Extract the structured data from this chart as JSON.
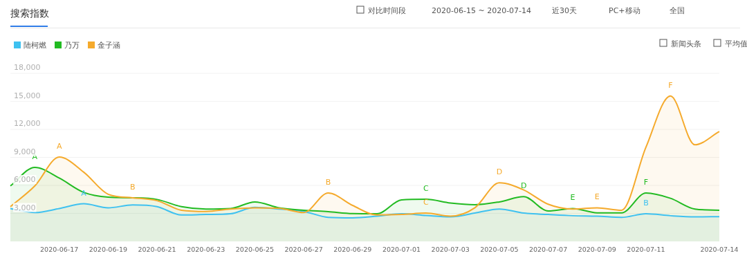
{
  "chart_data": {
    "type": "area",
    "title": "搜索指数",
    "annotations": [
      "对比时间段",
      "2020-06-15 ~ 2020-07-14",
      "近30天",
      "PC+移动",
      "全国",
      "新闻头条",
      "平均值",
      {
        "text": "A",
        "x": "2020-06-16",
        "y": 7930
      },
      {
        "text": "A",
        "x": "2020-06-17",
        "y": 9030
      },
      {
        "text": "A",
        "x": "2020-06-18",
        "y": 4030
      },
      {
        "text": "B",
        "x": "2020-06-20",
        "y": 4670
      },
      {
        "text": "B",
        "x": "2020-06-28",
        "y": 5180
      },
      {
        "text": "C",
        "x": "2020-07-02",
        "y": 4510
      },
      {
        "text": "C",
        "x": "2020-07-02",
        "y": 3030
      },
      {
        "text": "D",
        "x": "2020-07-05",
        "y": 6270
      },
      {
        "text": "D",
        "x": "2020-07-06",
        "y": 4790
      },
      {
        "text": "E",
        "x": "2020-07-08",
        "y": 3520
      },
      {
        "text": "E",
        "x": "2020-07-09",
        "y": 3600
      },
      {
        "text": "F",
        "x": "2020-07-11",
        "y": 5180
      },
      {
        "text": "B",
        "x": "2020-07-11",
        "y": 2960
      },
      {
        "text": "F",
        "x": "2020-07-12",
        "y": 15580
      }
    ],
    "x": [
      "2020-06-15",
      "2020-06-16",
      "2020-06-17",
      "2020-06-18",
      "2020-06-19",
      "2020-06-20",
      "2020-06-21",
      "2020-06-22",
      "2020-06-23",
      "2020-06-24",
      "2020-06-25",
      "2020-06-26",
      "2020-06-27",
      "2020-06-28",
      "2020-06-29",
      "2020-06-30",
      "2020-07-01",
      "2020-07-02",
      "2020-07-03",
      "2020-07-04",
      "2020-07-05",
      "2020-07-06",
      "2020-07-07",
      "2020-07-08",
      "2020-07-09",
      "2020-07-10",
      "2020-07-11",
      "2020-07-12",
      "2020-07-13",
      "2020-07-14"
    ],
    "series": [
      {
        "name": "陆柯燃",
        "color": "#3ec1f0",
        "values": [
          3520,
          3090,
          3520,
          4030,
          3600,
          3900,
          3720,
          2830,
          2880,
          2960,
          3650,
          3470,
          3210,
          2580,
          2520,
          2700,
          2960,
          2780,
          2630,
          3030,
          3470,
          3030,
          2880,
          2750,
          2700,
          2580,
          2960,
          2750,
          2630,
          2650
        ]
      },
      {
        "name": "乃万",
        "color": "#22bb22",
        "values": [
          5940,
          7930,
          6780,
          5250,
          4740,
          4670,
          4490,
          3720,
          3470,
          3520,
          4230,
          3600,
          3340,
          3190,
          2980,
          2960,
          4440,
          4510,
          4110,
          3930,
          4230,
          4790,
          3260,
          3520,
          3060,
          3060,
          5180,
          4620,
          3470,
          3340
        ]
      },
      {
        "name": "金子涵",
        "color": "#f5aa2c",
        "values": [
          3720,
          5940,
          9030,
          7420,
          5050,
          4670,
          4360,
          3340,
          3210,
          3470,
          3600,
          3540,
          3090,
          5180,
          3850,
          2830,
          2880,
          3030,
          2700,
          3600,
          6270,
          5510,
          3980,
          3470,
          3600,
          3340,
          10100,
          15580,
          10350,
          11760
        ]
      }
    ],
    "xlim": [
      "2020-06-15",
      "2020-07-14"
    ],
    "ylim": [
      0,
      18000
    ],
    "yticks": [
      {
        "value": 3000,
        "label": "3,000"
      },
      {
        "value": 6000,
        "label": "6,000"
      },
      {
        "value": 9000,
        "label": "9,000"
      },
      {
        "value": 12000,
        "label": "12,000"
      },
      {
        "value": 15000,
        "label": "15,000"
      },
      {
        "value": 18000,
        "label": "18,000"
      }
    ],
    "xticks": [
      "2020-06-17",
      "2020-06-19",
      "2020-06-21",
      "2020-06-23",
      "2020-06-25",
      "2020-06-27",
      "2020-06-29",
      "2020-07-01",
      "2020-07-03",
      "2020-07-05",
      "2020-07-07",
      "2020-07-09",
      "2020-07-11",
      "2020-07-14"
    ],
    "grid": "y",
    "legend": "top left"
  }
}
